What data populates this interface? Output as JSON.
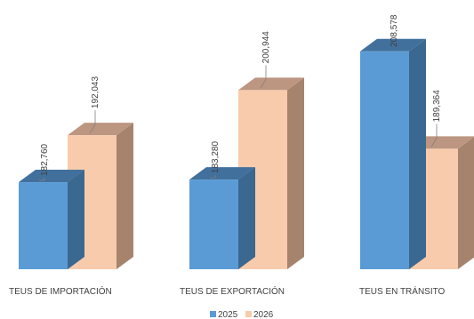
{
  "chart_data": {
    "type": "bar",
    "style": "3d-clustered-column",
    "categories": [
      "TEUS DE IMPORTACIÓN",
      "TEUS DE EXPORTACIÓN",
      "TEUS EN TRÁNSITO"
    ],
    "series": [
      {
        "name": "2025",
        "values": [
          182760,
          183280,
          208578
        ],
        "labels": [
          "182,760",
          "183,280",
          "208,578"
        ]
      },
      {
        "name": "2026",
        "values": [
          192043,
          200944,
          189364
        ],
        "labels": [
          "192,043",
          "200,944",
          "189,364"
        ]
      }
    ],
    "title": "",
    "xlabel": "",
    "ylabel": "",
    "grid": false,
    "legend_position": "bottom-center",
    "colors": {
      "2025": {
        "front": "#5b9bd5",
        "side": "#3a6890",
        "top": "#41709c"
      },
      "2026": {
        "front": "#f8cbad",
        "side": "#a6836d",
        "top": "#bc9680"
      },
      "label_text": "#404040",
      "leader_line": "#808080"
    }
  }
}
